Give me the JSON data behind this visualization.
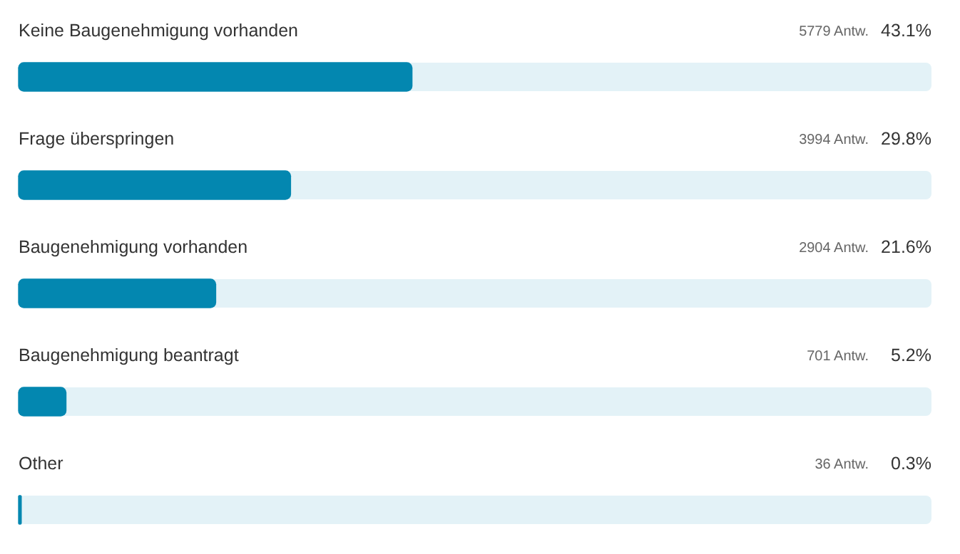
{
  "chart_data": {
    "type": "bar",
    "orientation": "horizontal",
    "categories": [
      "Keine Baugenehmigung vorhanden",
      "Frage überspringen",
      "Baugenehmigung vorhanden",
      "Baugenehmigung beantragt",
      "Other"
    ],
    "values": [
      43.1,
      29.8,
      21.6,
      5.2,
      0.3
    ],
    "value_labels": [
      "43.1%",
      "29.8%",
      "21.6%",
      "5.2%",
      "0.3%"
    ],
    "color": "#0387b0",
    "xlim": [
      0,
      100
    ],
    "legend": false,
    "annotations": [
      "5779 Antw.",
      "3994 Antw.",
      "2904 Antw.",
      "701 Antw.",
      "36 Antw."
    ]
  }
}
